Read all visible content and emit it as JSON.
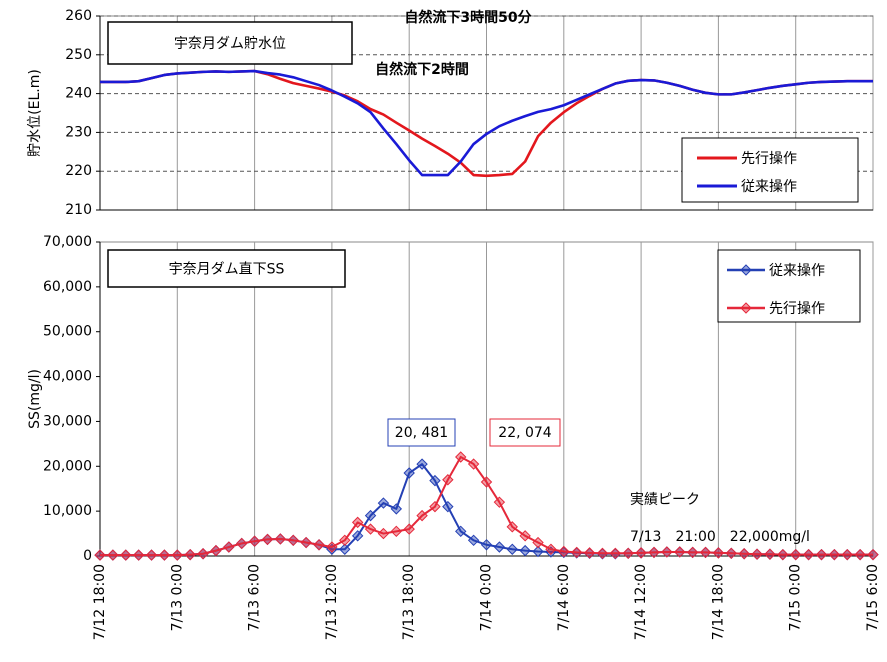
{
  "chart_data": [
    {
      "type": "line",
      "title": "宇奈月ダム貯水位",
      "ylabel": "貯水位(EL.m)",
      "grid": "both",
      "markers": false,
      "annotations": [
        "自然流下3時間50分",
        "自然流下2時間"
      ],
      "xlim": [
        "7/12 18:00",
        "7/15 6:00"
      ],
      "xticks": [
        "7/12 18:00",
        "7/13 0:00",
        "7/13 6:00",
        "7/13 12:00",
        "7/13 18:00",
        "7/14 0:00",
        "7/14 6:00",
        "7/14 12:00",
        "7/14 18:00",
        "7/15 0:00",
        "7/15 6:00"
      ],
      "ylim": [
        210,
        260
      ],
      "yticks": [
        210,
        220,
        230,
        240,
        250,
        260
      ],
      "x": [
        "7/12 18:00",
        "7/12 19:00",
        "7/12 20:00",
        "7/12 21:00",
        "7/12 22:00",
        "7/12 23:00",
        "7/13 0:00",
        "7/13 1:00",
        "7/13 2:00",
        "7/13 3:00",
        "7/13 4:00",
        "7/13 5:00",
        "7/13 6:00",
        "7/13 7:00",
        "7/13 8:00",
        "7/13 9:00",
        "7/13 10:00",
        "7/13 11:00",
        "7/13 12:00",
        "7/13 13:00",
        "7/13 14:00",
        "7/13 15:00",
        "7/13 16:00",
        "7/13 17:00",
        "7/13 18:00",
        "7/13 19:00",
        "7/13 20:00",
        "7/13 21:00",
        "7/13 22:00",
        "7/13 23:00",
        "7/14 0:00",
        "7/14 1:00",
        "7/14 2:00",
        "7/14 3:00",
        "7/14 4:00",
        "7/14 5:00",
        "7/14 6:00",
        "7/14 7:00",
        "7/14 8:00",
        "7/14 9:00",
        "7/14 10:00",
        "7/14 11:00",
        "7/14 12:00",
        "7/14 13:00",
        "7/14 14:00",
        "7/14 15:00",
        "7/14 16:00",
        "7/14 17:00",
        "7/14 18:00",
        "7/14 19:00",
        "7/14 20:00",
        "7/14 21:00",
        "7/14 22:00",
        "7/14 23:00",
        "7/15 0:00",
        "7/15 1:00",
        "7/15 2:00",
        "7/15 3:00",
        "7/15 4:00",
        "7/15 5:00",
        "7/15 6:00"
      ],
      "series": [
        {
          "name": "先行操作",
          "color": "#e3171d",
          "values": [
            243,
            243,
            243,
            243.2,
            244,
            244.8,
            245.2,
            245.4,
            245.6,
            245.7,
            245.6,
            245.7,
            245.8,
            245,
            243.8,
            242.7,
            242,
            241.3,
            240.5,
            239.5,
            238,
            236,
            234.6,
            232.5,
            230.5,
            228.4,
            226.5,
            224.5,
            222.2,
            219,
            218.8,
            219,
            219.3,
            222.5,
            229,
            232.5,
            235.2,
            237.5,
            239.4,
            241.2,
            242.6,
            243.3,
            243.5,
            243.4,
            242.8,
            242,
            241,
            240.2,
            239.8,
            239.8,
            240.3,
            240.9,
            241.5,
            242,
            242.4,
            242.8,
            243,
            243.1,
            243.2,
            243.2,
            243.2
          ]
        },
        {
          "name": "従来操作",
          "color": "#1a1ad6",
          "values": [
            243,
            243,
            243,
            243.2,
            244,
            244.8,
            245.2,
            245.4,
            245.6,
            245.7,
            245.6,
            245.7,
            245.8,
            245.3,
            244.9,
            244.2,
            243.2,
            242.2,
            240.8,
            239.2,
            237.5,
            235.2,
            231,
            227,
            222.8,
            219,
            219,
            219,
            222.5,
            227,
            229.6,
            231.6,
            233,
            234.2,
            235.3,
            236,
            237,
            238.4,
            239.8,
            241.2,
            242.6,
            243.3,
            243.5,
            243.4,
            242.8,
            242,
            241,
            240.2,
            239.8,
            239.8,
            240.3,
            240.9,
            241.5,
            242,
            242.4,
            242.8,
            243,
            243.1,
            243.2,
            243.2,
            243.2
          ]
        }
      ]
    },
    {
      "type": "line",
      "title": "宇奈月ダム直下SS",
      "ylabel": "SS(mg/l)",
      "grid": "x",
      "markers": true,
      "annotations": [
        "実績ピーク",
        "7/13　21:00　22,000mg/l"
      ],
      "xlim": [
        "7/12 18:00",
        "7/15 6:00"
      ],
      "xticks": [
        "7/12 18:00",
        "7/13 0:00",
        "7/13 6:00",
        "7/13 12:00",
        "7/13 18:00",
        "7/14 0:00",
        "7/14 6:00",
        "7/14 12:00",
        "7/14 18:00",
        "7/15 0:00",
        "7/15 6:00"
      ],
      "ylim": [
        0,
        70000
      ],
      "yticks": [
        0,
        {
          "value": 10000,
          "label": "10,000"
        },
        {
          "value": 20000,
          "label": "20,000"
        },
        {
          "value": 30000,
          "label": "30,000"
        },
        {
          "value": 40000,
          "label": "40,000"
        },
        {
          "value": 50000,
          "label": "50,000"
        },
        {
          "value": 60000,
          "label": "60,000"
        },
        {
          "value": 70000,
          "label": "70,000"
        }
      ],
      "x": [
        "7/12 18:00",
        "7/12 19:00",
        "7/12 20:00",
        "7/12 21:00",
        "7/12 22:00",
        "7/12 23:00",
        "7/13 0:00",
        "7/13 1:00",
        "7/13 2:00",
        "7/13 3:00",
        "7/13 4:00",
        "7/13 5:00",
        "7/13 6:00",
        "7/13 7:00",
        "7/13 8:00",
        "7/13 9:00",
        "7/13 10:00",
        "7/13 11:00",
        "7/13 12:00",
        "7/13 13:00",
        "7/13 14:00",
        "7/13 15:00",
        "7/13 16:00",
        "7/13 17:00",
        "7/13 18:00",
        "7/13 19:00",
        "7/13 20:00",
        "7/13 21:00",
        "7/13 22:00",
        "7/13 23:00",
        "7/14 0:00",
        "7/14 1:00",
        "7/14 2:00",
        "7/14 3:00",
        "7/14 4:00",
        "7/14 5:00",
        "7/14 6:00",
        "7/14 7:00",
        "7/14 8:00",
        "7/14 9:00",
        "7/14 10:00",
        "7/14 11:00",
        "7/14 12:00",
        "7/14 13:00",
        "7/14 14:00",
        "7/14 15:00",
        "7/14 16:00",
        "7/14 17:00",
        "7/14 18:00",
        "7/14 19:00",
        "7/14 20:00",
        "7/14 21:00",
        "7/14 22:00",
        "7/14 23:00",
        "7/15 0:00",
        "7/15 1:00",
        "7/15 2:00",
        "7/15 3:00",
        "7/15 4:00",
        "7/15 5:00",
        "7/15 6:00"
      ],
      "series": [
        {
          "name": "従来操作",
          "color": "#2440b4",
          "values": [
            200,
            200,
            200,
            200,
            200,
            200,
            200,
            300,
            500,
            1200,
            2000,
            2800,
            3300,
            3700,
            3800,
            3500,
            3000,
            2500,
            1500,
            1500,
            4500,
            9000,
            11800,
            10500,
            18500,
            20481,
            16800,
            11000,
            5500,
            3500,
            2500,
            2000,
            1500,
            1200,
            1000,
            900,
            800,
            700,
            600,
            500,
            500,
            600,
            700,
            800,
            900,
            900,
            800,
            800,
            700,
            600,
            500,
            400,
            400,
            300,
            300,
            300,
            300,
            300,
            300,
            300,
            300
          ],
          "value_labels": [
            null,
            null,
            null,
            null,
            null,
            null,
            null,
            null,
            null,
            null,
            null,
            null,
            null,
            null,
            null,
            null,
            null,
            null,
            null,
            null,
            null,
            null,
            null,
            null,
            null,
            "20, 481",
            null,
            null,
            null,
            null,
            null,
            null,
            null,
            null,
            null,
            null,
            null,
            null,
            null,
            null,
            null,
            null,
            null,
            null,
            null,
            null,
            null,
            null,
            null,
            null,
            null,
            null,
            null,
            null,
            null,
            null,
            null,
            null,
            null,
            null,
            null
          ]
        },
        {
          "name": "先行操作",
          "color": "#e5283a",
          "values": [
            200,
            200,
            200,
            200,
            200,
            200,
            200,
            300,
            500,
            1200,
            2000,
            2800,
            3300,
            3700,
            3800,
            3500,
            3000,
            2500,
            2000,
            3500,
            7500,
            6000,
            5000,
            5500,
            6000,
            9000,
            11000,
            17000,
            22074,
            20500,
            16500,
            12000,
            6500,
            4500,
            3000,
            1500,
            1000,
            800,
            700,
            600,
            600,
            600,
            700,
            800,
            900,
            900,
            800,
            800,
            700,
            600,
            500,
            400,
            400,
            300,
            300,
            300,
            300,
            300,
            300,
            300,
            300
          ],
          "value_labels": [
            null,
            null,
            null,
            null,
            null,
            null,
            null,
            null,
            null,
            null,
            null,
            null,
            null,
            null,
            null,
            null,
            null,
            null,
            null,
            null,
            null,
            null,
            null,
            null,
            null,
            null,
            null,
            null,
            "22, 074",
            null,
            null,
            null,
            null,
            null,
            null,
            null,
            null,
            null,
            null,
            null,
            null,
            null,
            null,
            null,
            null,
            null,
            null,
            null,
            null,
            null,
            null,
            null,
            null,
            null,
            null,
            null,
            null,
            null,
            null,
            null,
            null
          ]
        }
      ]
    }
  ]
}
